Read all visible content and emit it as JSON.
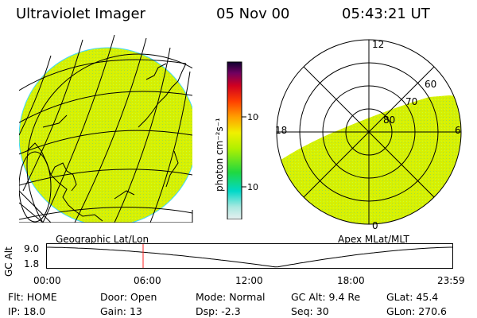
{
  "header": {
    "title": "Ultraviolet Imager",
    "date": "05 Nov 00",
    "time": "05:43:21 UT"
  },
  "colorbar": {
    "unit_label": "photon cm⁻²s⁻¹",
    "ticks": [
      "100",
      "10"
    ]
  },
  "polar_plot": {
    "mlt_labels": {
      "top": "12",
      "left": "18",
      "right": "6",
      "bottom": "0"
    },
    "lat_labels": [
      "80",
      "70",
      "60"
    ]
  },
  "captions": {
    "left": "Geographic Lat/Lon",
    "right": "Apex MLat/MLT"
  },
  "timeline": {
    "ylabel": "GC Alt",
    "yticks": [
      "9.0",
      "1.8"
    ],
    "xticks": [
      "00:00",
      "06:00",
      "12:00",
      "18:00",
      "23:59"
    ],
    "marker_time": "05:43"
  },
  "info": {
    "row1": [
      {
        "key": "Flt:",
        "value": "HOME"
      },
      {
        "key": "Door:",
        "value": "Open"
      },
      {
        "key": "Mode:",
        "value": "Normal"
      },
      {
        "key": "GC Alt:",
        "value": "9.4 Re"
      },
      {
        "key": "GLat:",
        "value": "45.4"
      }
    ],
    "row2": [
      {
        "key": "IP:",
        "value": "18.0"
      },
      {
        "key": "Gain:",
        "value": "13"
      },
      {
        "key": "Dsp:",
        "value": "-2.3"
      },
      {
        "key": "Seq:",
        "value": "30"
      },
      {
        "key": "GLon:",
        "value": "270.6"
      }
    ]
  },
  "colors": {
    "fill": "#d8f000",
    "speckle": "#9fe040",
    "marker": "#ff2020"
  }
}
